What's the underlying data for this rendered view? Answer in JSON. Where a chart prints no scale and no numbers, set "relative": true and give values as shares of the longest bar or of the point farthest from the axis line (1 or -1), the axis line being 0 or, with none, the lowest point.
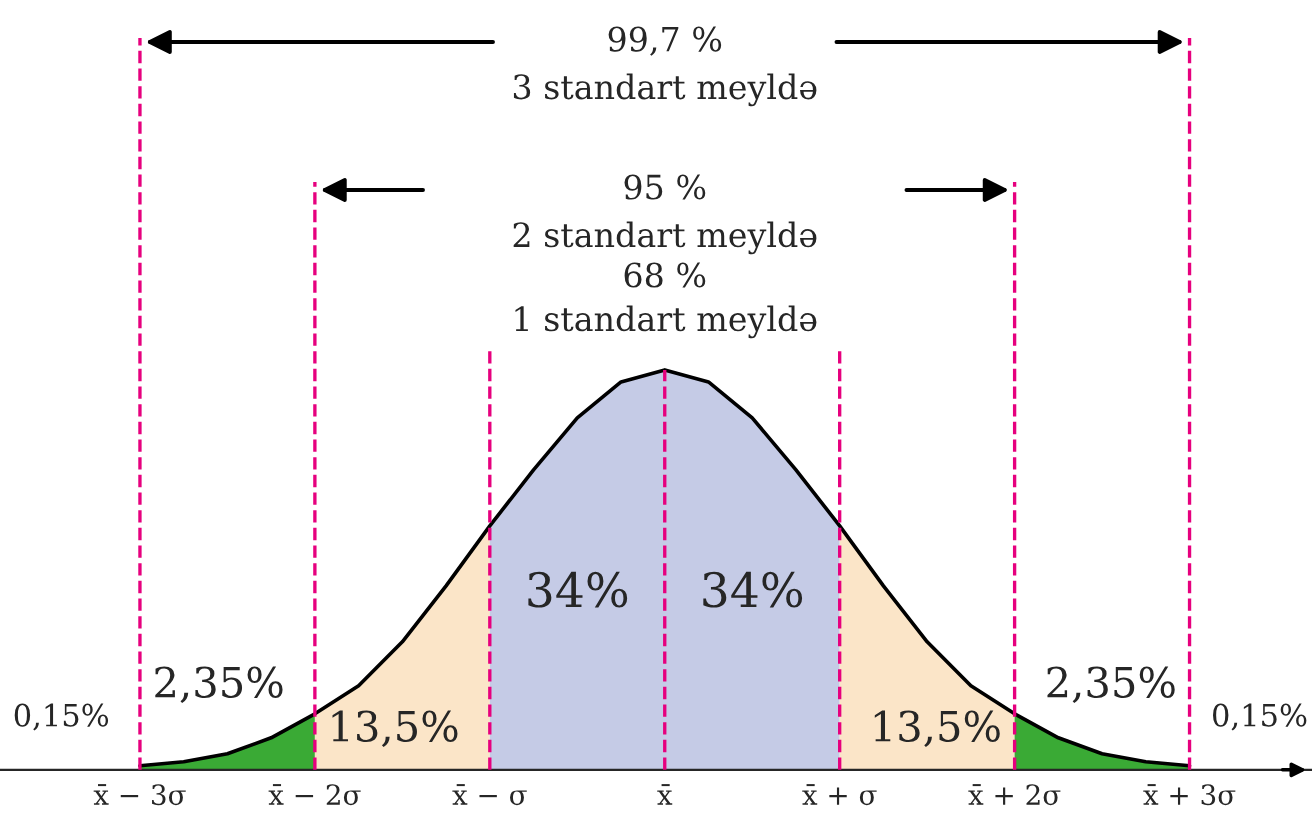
{
  "chart_data": {
    "type": "area",
    "relative": true,
    "grid": false,
    "tick_labels": "x",
    "xlim": [
      -3.8,
      3.7
    ],
    "xticks": [
      {
        "value": -3,
        "label": "x̄ − 3σ"
      },
      {
        "value": -2,
        "label": "x̄ − 2σ"
      },
      {
        "value": -1,
        "label": "x̄ − σ"
      },
      {
        "value": 0,
        "label": "x̄"
      },
      {
        "value": 1,
        "label": "x̄ + σ"
      },
      {
        "value": 2,
        "label": "x̄ + 2σ"
      },
      {
        "value": 3,
        "label": "x̄ + 3σ"
      }
    ],
    "series": [
      {
        "color": "#3aaa35",
        "x": [
          -3,
          -2.75,
          -2.5,
          -2.25,
          -2
        ],
        "values": [
          0.01,
          0.02,
          0.04,
          0.08,
          0.14
        ]
      },
      {
        "color": "#fbe5c8",
        "x": [
          -2,
          -1.75,
          -1.5,
          -1.25,
          -1
        ],
        "values": [
          0.14,
          0.21,
          0.32,
          0.46,
          0.61
        ]
      },
      {
        "color": "#c5cbe6",
        "x": [
          -1,
          -0.75,
          -0.5,
          -0.25,
          0,
          0.25,
          0.5,
          0.75,
          1
        ],
        "values": [
          0.61,
          0.75,
          0.88,
          0.97,
          1,
          0.97,
          0.88,
          0.75,
          0.61
        ]
      },
      {
        "color": "#fbe5c8",
        "x": [
          1,
          1.25,
          1.5,
          1.75,
          2
        ],
        "values": [
          0.61,
          0.46,
          0.32,
          0.21,
          0.14
        ]
      },
      {
        "color": "#3aaa35",
        "x": [
          2,
          2.25,
          2.5,
          2.75,
          3
        ],
        "values": [
          0.14,
          0.08,
          0.04,
          0.02,
          0.01
        ]
      },
      {
        "type": "line",
        "color": "#000000",
        "x": [
          -3,
          -2.75,
          -2.5,
          -2.25,
          -2,
          -1.75,
          -1.5,
          -1.25,
          -1,
          -0.75,
          -0.5,
          -0.25,
          0,
          0.25,
          0.5,
          0.75,
          1,
          1.25,
          1.5,
          1.75,
          2,
          2.25,
          2.5,
          2.75,
          3
        ],
        "values": [
          0.01,
          0.02,
          0.04,
          0.08,
          0.14,
          0.21,
          0.32,
          0.46,
          0.61,
          0.75,
          0.88,
          0.97,
          1,
          0.97,
          0.88,
          0.75,
          0.61,
          0.46,
          0.32,
          0.21,
          0.14,
          0.08,
          0.04,
          0.02,
          0.01
        ]
      }
    ],
    "ref_lines": [
      {
        "axis": "x",
        "value": -3,
        "color": "#e6007e",
        "line_style": "dashed"
      },
      {
        "axis": "x",
        "value": -2,
        "color": "#e6007e",
        "line_style": "dashed"
      },
      {
        "axis": "x",
        "value": -1,
        "color": "#e6007e",
        "line_style": "dashed"
      },
      {
        "axis": "x",
        "value": 0,
        "color": "#e6007e",
        "line_style": "dashed"
      },
      {
        "axis": "x",
        "value": 1,
        "color": "#e6007e",
        "line_style": "dashed"
      },
      {
        "axis": "x",
        "value": 2,
        "color": "#e6007e",
        "line_style": "dashed"
      },
      {
        "axis": "x",
        "value": 3,
        "color": "#e6007e",
        "line_style": "dashed"
      }
    ],
    "annotations": [
      "99,7 %",
      "3 standart meyldə",
      "95 %",
      "2 standart meyldə",
      "68 %",
      "1 standart meyldə",
      "0,15%",
      "2,35%",
      "13,5%",
      "34%",
      "34%",
      "13,5%",
      "2,35%",
      "0,15%"
    ]
  }
}
